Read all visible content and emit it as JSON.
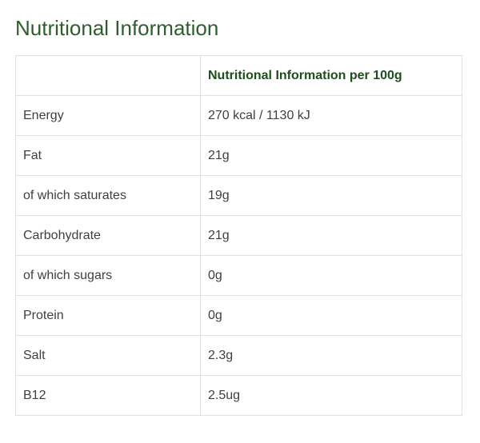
{
  "title": "Nutritional Information",
  "table": {
    "header": {
      "label": "",
      "value": "Nutritional Information per 100g"
    },
    "rows": [
      {
        "label": "Energy",
        "value": "270 kcal / 1130 kJ"
      },
      {
        "label": "Fat",
        "value": "21g"
      },
      {
        "label": "of which saturates",
        "value": "19g"
      },
      {
        "label": "Carbohydrate",
        "value": "21g"
      },
      {
        "label": "of which sugars",
        "value": "0g"
      },
      {
        "label": "Protein",
        "value": "0g"
      },
      {
        "label": "Salt",
        "value": "2.3g"
      },
      {
        "label": "B12",
        "value": "2.5ug"
      }
    ]
  },
  "colors": {
    "title": "#2e5e2e",
    "header_text": "#1e4e1e",
    "body_text": "#3f3f3f",
    "border": "#e1e1e1"
  }
}
